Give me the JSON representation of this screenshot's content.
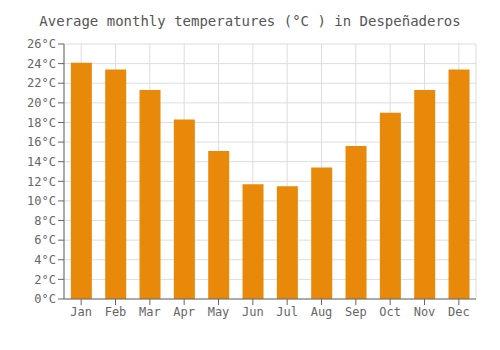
{
  "chart_data": {
    "type": "bar",
    "title": "Average monthly temperatures (°C ) in Despeñaderos",
    "categories": [
      "Jan",
      "Feb",
      "Mar",
      "Apr",
      "May",
      "Jun",
      "Jul",
      "Aug",
      "Sep",
      "Oct",
      "Nov",
      "Dec"
    ],
    "values": [
      24.1,
      23.4,
      21.3,
      18.3,
      15.1,
      11.7,
      11.5,
      13.4,
      15.6,
      19.0,
      21.3,
      23.4
    ],
    "color": "#E8890A",
    "ylim": [
      0,
      26
    ],
    "yticks": [
      {
        "value": 0,
        "label": "0°C"
      },
      {
        "value": 2,
        "label": "2°C"
      },
      {
        "value": 4,
        "label": "4°C"
      },
      {
        "value": 6,
        "label": "6°C"
      },
      {
        "value": 8,
        "label": "8°C"
      },
      {
        "value": 10,
        "label": "10°C"
      },
      {
        "value": 12,
        "label": "12°C"
      },
      {
        "value": 14,
        "label": "14°C"
      },
      {
        "value": 16,
        "label": "16°C"
      },
      {
        "value": 18,
        "label": "18°C"
      },
      {
        "value": 20,
        "label": "20°C"
      },
      {
        "value": 22,
        "label": "22°C"
      },
      {
        "value": 24,
        "label": "24°C"
      },
      {
        "value": 26,
        "label": "26°C"
      }
    ],
    "grid": true
  }
}
